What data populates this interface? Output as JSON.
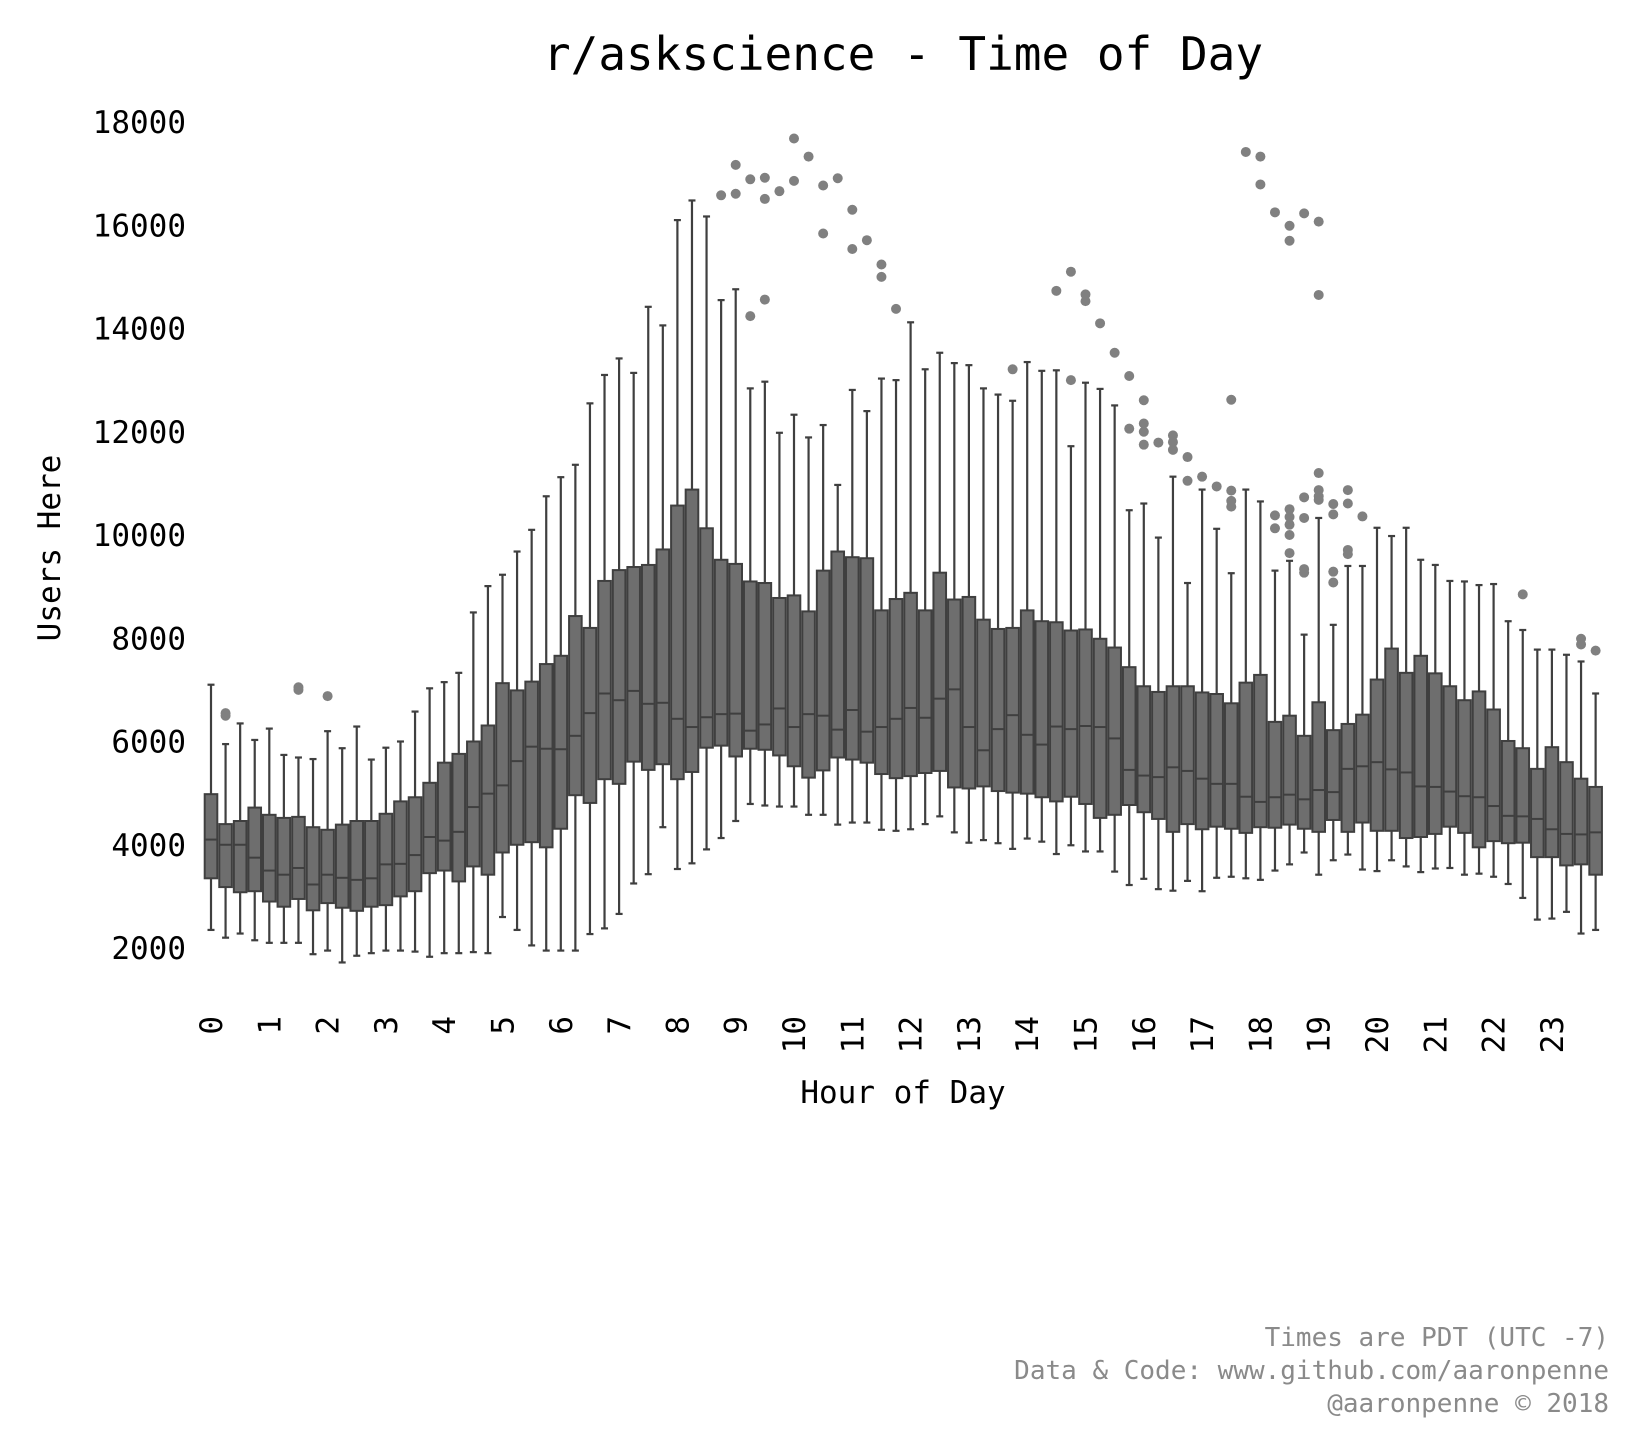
{
  "chart_data": {
    "type": "box",
    "title": "r/askscience - Time of Day",
    "xlabel": "Hour of Day",
    "ylabel": "Users Here",
    "ylim": [
      1500,
      18200
    ],
    "yticks": [
      2000,
      4000,
      6000,
      8000,
      10000,
      12000,
      14000,
      16000,
      18000
    ],
    "xticks": [
      "0",
      "1",
      "2",
      "3",
      "4",
      "5",
      "6",
      "7",
      "8",
      "9",
      "10",
      "11",
      "12",
      "13",
      "14",
      "15",
      "16",
      "17",
      "18",
      "19",
      "20",
      "21",
      "22",
      "23"
    ],
    "grid": false,
    "box_color": "#6e6e6e",
    "line_color": "#3f3f3f",
    "flier_color": "#808080",
    "boxes": [
      {
        "x": 0.0,
        "q1": 3350,
        "med": 4100,
        "q3": 4980,
        "lo": 2350,
        "hi": 7100,
        "fliers": []
      },
      {
        "x": 0.25,
        "q1": 3180,
        "med": 4000,
        "q3": 4400,
        "lo": 2200,
        "hi": 5950,
        "fliers": [
          6550,
          6500
        ]
      },
      {
        "x": 0.5,
        "q1": 3080,
        "med": 4000,
        "q3": 4460,
        "lo": 2280,
        "hi": 6350,
        "fliers": []
      },
      {
        "x": 0.75,
        "q1": 3100,
        "med": 3750,
        "q3": 4720,
        "lo": 2150,
        "hi": 6030,
        "fliers": []
      },
      {
        "x": 1.0,
        "q1": 2900,
        "med": 3500,
        "q3": 4580,
        "lo": 2100,
        "hi": 6250,
        "fliers": []
      },
      {
        "x": 1.25,
        "q1": 2800,
        "med": 3420,
        "q3": 4520,
        "lo": 2100,
        "hi": 5740,
        "fliers": []
      },
      {
        "x": 1.5,
        "q1": 2950,
        "med": 3550,
        "q3": 4540,
        "lo": 2100,
        "hi": 5690,
        "fliers": [
          7050,
          7000
        ]
      },
      {
        "x": 1.75,
        "q1": 2730,
        "med": 3230,
        "q3": 4340,
        "lo": 1880,
        "hi": 5660,
        "fliers": []
      },
      {
        "x": 2.0,
        "q1": 2870,
        "med": 3420,
        "q3": 4290,
        "lo": 1950,
        "hi": 6200,
        "fliers": [
          6880
        ]
      },
      {
        "x": 2.25,
        "q1": 2780,
        "med": 3360,
        "q3": 4390,
        "lo": 1720,
        "hi": 5870,
        "fliers": []
      },
      {
        "x": 2.5,
        "q1": 2720,
        "med": 3320,
        "q3": 4460,
        "lo": 1850,
        "hi": 6290,
        "fliers": []
      },
      {
        "x": 2.75,
        "q1": 2800,
        "med": 3350,
        "q3": 4460,
        "lo": 1900,
        "hi": 5650,
        "fliers": []
      },
      {
        "x": 3.0,
        "q1": 2830,
        "med": 3620,
        "q3": 4600,
        "lo": 1950,
        "hi": 5880,
        "fliers": []
      },
      {
        "x": 3.25,
        "q1": 3000,
        "med": 3630,
        "q3": 4840,
        "lo": 1950,
        "hi": 6000,
        "fliers": []
      },
      {
        "x": 3.5,
        "q1": 3100,
        "med": 3800,
        "q3": 4920,
        "lo": 1930,
        "hi": 6580,
        "fliers": []
      },
      {
        "x": 3.75,
        "q1": 3450,
        "med": 4150,
        "q3": 5200,
        "lo": 1830,
        "hi": 7030,
        "fliers": []
      },
      {
        "x": 4.0,
        "q1": 3500,
        "med": 4080,
        "q3": 5590,
        "lo": 1900,
        "hi": 7150,
        "fliers": []
      },
      {
        "x": 4.25,
        "q1": 3290,
        "med": 4250,
        "q3": 5760,
        "lo": 1900,
        "hi": 7330,
        "fliers": []
      },
      {
        "x": 4.5,
        "q1": 3580,
        "med": 4730,
        "q3": 6000,
        "lo": 1920,
        "hi": 8500,
        "fliers": []
      },
      {
        "x": 4.75,
        "q1": 3420,
        "med": 4990,
        "q3": 6310,
        "lo": 1900,
        "hi": 9010,
        "fliers": []
      },
      {
        "x": 5.0,
        "q1": 3850,
        "med": 5150,
        "q3": 7130,
        "lo": 2600,
        "hi": 9230,
        "fliers": []
      },
      {
        "x": 5.25,
        "q1": 4000,
        "med": 5620,
        "q3": 6990,
        "lo": 2350,
        "hi": 9680,
        "fliers": []
      },
      {
        "x": 5.5,
        "q1": 4050,
        "med": 5900,
        "q3": 7160,
        "lo": 2050,
        "hi": 10100,
        "fliers": []
      },
      {
        "x": 5.75,
        "q1": 3950,
        "med": 5860,
        "q3": 7500,
        "lo": 1950,
        "hi": 10750,
        "fliers": []
      },
      {
        "x": 6.0,
        "q1": 4310,
        "med": 5850,
        "q3": 7660,
        "lo": 1950,
        "hi": 11120,
        "fliers": []
      },
      {
        "x": 6.25,
        "q1": 4960,
        "med": 6110,
        "q3": 8430,
        "lo": 1950,
        "hi": 11360,
        "fliers": []
      },
      {
        "x": 6.5,
        "q1": 4810,
        "med": 6550,
        "q3": 8200,
        "lo": 2270,
        "hi": 12550,
        "fliers": []
      },
      {
        "x": 6.75,
        "q1": 5270,
        "med": 6930,
        "q3": 9110,
        "lo": 2380,
        "hi": 13100,
        "fliers": []
      },
      {
        "x": 7.0,
        "q1": 5180,
        "med": 6800,
        "q3": 9320,
        "lo": 2660,
        "hi": 13420,
        "fliers": []
      },
      {
        "x": 7.25,
        "q1": 5610,
        "med": 6980,
        "q3": 9380,
        "lo": 3250,
        "hi": 13140,
        "fliers": []
      },
      {
        "x": 7.5,
        "q1": 5450,
        "med": 6730,
        "q3": 9420,
        "lo": 3430,
        "hi": 14420,
        "fliers": []
      },
      {
        "x": 7.75,
        "q1": 5560,
        "med": 6750,
        "q3": 9720,
        "lo": 4340,
        "hi": 14060,
        "fliers": []
      },
      {
        "x": 8.0,
        "q1": 5270,
        "med": 6440,
        "q3": 10570,
        "lo": 3530,
        "hi": 16100,
        "fliers": []
      },
      {
        "x": 8.25,
        "q1": 5410,
        "med": 6280,
        "q3": 10880,
        "lo": 3640,
        "hi": 16480,
        "fliers": []
      },
      {
        "x": 8.5,
        "q1": 5880,
        "med": 6470,
        "q3": 10130,
        "lo": 3910,
        "hi": 16170,
        "fliers": []
      },
      {
        "x": 8.75,
        "q1": 5920,
        "med": 6530,
        "q3": 9520,
        "lo": 4130,
        "hi": 14550,
        "fliers": [
          16580
        ]
      },
      {
        "x": 9.0,
        "q1": 5710,
        "med": 6540,
        "q3": 9440,
        "lo": 4460,
        "hi": 14760,
        "fliers": [
          17170,
          16610
        ]
      },
      {
        "x": 9.25,
        "q1": 5860,
        "med": 6210,
        "q3": 9100,
        "lo": 4790,
        "hi": 12840,
        "fliers": [
          16890,
          14240
        ]
      },
      {
        "x": 9.5,
        "q1": 5840,
        "med": 6330,
        "q3": 9070,
        "lo": 4760,
        "hi": 12970,
        "fliers": [
          16920,
          16510,
          14560
        ]
      },
      {
        "x": 9.75,
        "q1": 5730,
        "med": 6640,
        "q3": 8780,
        "lo": 4740,
        "hi": 11980,
        "fliers": [
          16660
        ]
      },
      {
        "x": 10.0,
        "q1": 5520,
        "med": 6280,
        "q3": 8830,
        "lo": 4740,
        "hi": 12330,
        "fliers": [
          17680,
          16860
        ]
      },
      {
        "x": 10.25,
        "q1": 5300,
        "med": 6530,
        "q3": 8520,
        "lo": 4580,
        "hi": 11890,
        "fliers": [
          17330
        ]
      },
      {
        "x": 10.5,
        "q1": 5440,
        "med": 6500,
        "q3": 9310,
        "lo": 4580,
        "hi": 12130,
        "fliers": [
          16770,
          15840
        ]
      },
      {
        "x": 10.75,
        "q1": 5690,
        "med": 6230,
        "q3": 9680,
        "lo": 4390,
        "hi": 10970,
        "fliers": [
          16910
        ]
      },
      {
        "x": 11.0,
        "q1": 5650,
        "med": 6610,
        "q3": 9570,
        "lo": 4430,
        "hi": 12810,
        "fliers": [
          16300,
          15540
        ]
      },
      {
        "x": 11.25,
        "q1": 5590,
        "med": 6190,
        "q3": 9550,
        "lo": 4430,
        "hi": 12400,
        "fliers": [
          15710
        ]
      },
      {
        "x": 11.5,
        "q1": 5370,
        "med": 6280,
        "q3": 8540,
        "lo": 4290,
        "hi": 13030,
        "fliers": [
          15240,
          15000
        ]
      },
      {
        "x": 11.75,
        "q1": 5290,
        "med": 6440,
        "q3": 8760,
        "lo": 4270,
        "hi": 13000,
        "fliers": [
          14380
        ]
      },
      {
        "x": 12.0,
        "q1": 5330,
        "med": 6650,
        "q3": 8880,
        "lo": 4300,
        "hi": 14120,
        "fliers": []
      },
      {
        "x": 12.25,
        "q1": 5390,
        "med": 6460,
        "q3": 8540,
        "lo": 4400,
        "hi": 13210,
        "fliers": []
      },
      {
        "x": 12.5,
        "q1": 5430,
        "med": 6830,
        "q3": 9270,
        "lo": 4550,
        "hi": 13530,
        "fliers": []
      },
      {
        "x": 12.75,
        "q1": 5110,
        "med": 7010,
        "q3": 8750,
        "lo": 4240,
        "hi": 13330,
        "fliers": []
      },
      {
        "x": 13.0,
        "q1": 5090,
        "med": 6280,
        "q3": 8800,
        "lo": 4040,
        "hi": 13290,
        "fliers": []
      },
      {
        "x": 13.25,
        "q1": 5130,
        "med": 5830,
        "q3": 8360,
        "lo": 4090,
        "hi": 12840,
        "fliers": []
      },
      {
        "x": 13.5,
        "q1": 5040,
        "med": 6240,
        "q3": 8180,
        "lo": 4030,
        "hi": 12720,
        "fliers": []
      },
      {
        "x": 13.75,
        "q1": 5010,
        "med": 6510,
        "q3": 8200,
        "lo": 3920,
        "hi": 12600,
        "fliers": [
          13210
        ]
      },
      {
        "x": 14.0,
        "q1": 4990,
        "med": 6130,
        "q3": 8540,
        "lo": 4120,
        "hi": 13350,
        "fliers": []
      },
      {
        "x": 14.25,
        "q1": 4920,
        "med": 5940,
        "q3": 8330,
        "lo": 4060,
        "hi": 13180,
        "fliers": []
      },
      {
        "x": 14.5,
        "q1": 4840,
        "med": 6290,
        "q3": 8310,
        "lo": 3820,
        "hi": 13190,
        "fliers": [
          14730
        ]
      },
      {
        "x": 14.75,
        "q1": 4930,
        "med": 6240,
        "q3": 8150,
        "lo": 3990,
        "hi": 11720,
        "fliers": [
          15100,
          13000
        ]
      },
      {
        "x": 15.0,
        "q1": 4790,
        "med": 6300,
        "q3": 8170,
        "lo": 3870,
        "hi": 12950,
        "fliers": [
          14660,
          14530
        ]
      },
      {
        "x": 15.25,
        "q1": 4520,
        "med": 6280,
        "q3": 7990,
        "lo": 3870,
        "hi": 12830,
        "fliers": [
          14100
        ]
      },
      {
        "x": 15.5,
        "q1": 4580,
        "med": 6060,
        "q3": 7820,
        "lo": 3480,
        "hi": 12510,
        "fliers": [
          13530
        ]
      },
      {
        "x": 15.75,
        "q1": 4770,
        "med": 5450,
        "q3": 7440,
        "lo": 3220,
        "hi": 10480,
        "fliers": [
          13080,
          12060
        ]
      },
      {
        "x": 16.0,
        "q1": 4630,
        "med": 5340,
        "q3": 7070,
        "lo": 3340,
        "hi": 10610,
        "fliers": [
          12610,
          12160,
          12000,
          11750
        ]
      },
      {
        "x": 16.25,
        "q1": 4500,
        "med": 5310,
        "q3": 6960,
        "lo": 3140,
        "hi": 9950,
        "fliers": [
          11790
        ]
      },
      {
        "x": 16.5,
        "q1": 4250,
        "med": 5500,
        "q3": 7070,
        "lo": 3110,
        "hi": 11130,
        "fliers": [
          11930,
          11800,
          11650
        ]
      },
      {
        "x": 16.75,
        "q1": 4400,
        "med": 5430,
        "q3": 7070,
        "lo": 3300,
        "hi": 9070,
        "fliers": [
          11510,
          11050
        ]
      },
      {
        "x": 17.0,
        "q1": 4300,
        "med": 5280,
        "q3": 6950,
        "lo": 3100,
        "hi": 10880,
        "fliers": [
          11130
        ]
      },
      {
        "x": 17.25,
        "q1": 4350,
        "med": 5180,
        "q3": 6920,
        "lo": 3360,
        "hi": 10120,
        "fliers": [
          10940
        ]
      },
      {
        "x": 17.5,
        "q1": 4310,
        "med": 5180,
        "q3": 6740,
        "lo": 3380,
        "hi": 9260,
        "fliers": [
          12620,
          10860,
          10660,
          10550
        ]
      },
      {
        "x": 17.75,
        "q1": 4230,
        "med": 4930,
        "q3": 7140,
        "lo": 3350,
        "hi": 10880,
        "fliers": [
          17420
        ]
      },
      {
        "x": 18.0,
        "q1": 4340,
        "med": 4830,
        "q3": 7290,
        "lo": 3320,
        "hi": 10650,
        "fliers": [
          17330,
          16790
        ]
      },
      {
        "x": 18.25,
        "q1": 4330,
        "med": 4920,
        "q3": 6380,
        "lo": 3500,
        "hi": 9310,
        "fliers": [
          16250,
          10380,
          10130
        ]
      },
      {
        "x": 18.5,
        "q1": 4390,
        "med": 4970,
        "q3": 6500,
        "lo": 3620,
        "hi": 9500,
        "fliers": [
          15990,
          15700,
          10500,
          10350,
          10200,
          10000,
          9650
        ]
      },
      {
        "x": 18.75,
        "q1": 4310,
        "med": 4880,
        "q3": 6110,
        "lo": 3850,
        "hi": 8070,
        "fliers": [
          16230,
          10730,
          10330,
          9340,
          9270
        ]
      },
      {
        "x": 19.0,
        "q1": 4250,
        "med": 5060,
        "q3": 6760,
        "lo": 3420,
        "hi": 10330,
        "fliers": [
          16070,
          14650,
          11200,
          10870,
          10750,
          10680
        ]
      },
      {
        "x": 19.25,
        "q1": 4480,
        "med": 5020,
        "q3": 6220,
        "lo": 3700,
        "hi": 8260,
        "fliers": [
          10600,
          10400,
          9290,
          9080
        ]
      },
      {
        "x": 19.5,
        "q1": 4250,
        "med": 5470,
        "q3": 6340,
        "lo": 3810,
        "hi": 9400,
        "fliers": [
          10870,
          10610,
          9710,
          9630
        ]
      },
      {
        "x": 19.75,
        "q1": 4430,
        "med": 5520,
        "q3": 6520,
        "lo": 3520,
        "hi": 9400,
        "fliers": [
          10360
        ]
      },
      {
        "x": 20.0,
        "q1": 4270,
        "med": 5600,
        "q3": 7200,
        "lo": 3490,
        "hi": 10140,
        "fliers": []
      },
      {
        "x": 20.25,
        "q1": 4270,
        "med": 5460,
        "q3": 7800,
        "lo": 3700,
        "hi": 9980,
        "fliers": []
      },
      {
        "x": 20.5,
        "q1": 4130,
        "med": 5400,
        "q3": 7330,
        "lo": 3580,
        "hi": 10140,
        "fliers": []
      },
      {
        "x": 20.75,
        "q1": 4150,
        "med": 5130,
        "q3": 7660,
        "lo": 3470,
        "hi": 9520,
        "fliers": []
      },
      {
        "x": 21.0,
        "q1": 4210,
        "med": 5120,
        "q3": 7320,
        "lo": 3540,
        "hi": 9420,
        "fliers": []
      },
      {
        "x": 21.25,
        "q1": 4350,
        "med": 5030,
        "q3": 7070,
        "lo": 3550,
        "hi": 9110,
        "fliers": []
      },
      {
        "x": 21.5,
        "q1": 4230,
        "med": 4940,
        "q3": 6800,
        "lo": 3420,
        "hi": 9100,
        "fliers": []
      },
      {
        "x": 21.75,
        "q1": 3950,
        "med": 4920,
        "q3": 6970,
        "lo": 3440,
        "hi": 9030,
        "fliers": []
      },
      {
        "x": 22.0,
        "q1": 4070,
        "med": 4750,
        "q3": 6620,
        "lo": 3380,
        "hi": 9050,
        "fliers": []
      },
      {
        "x": 22.25,
        "q1": 4030,
        "med": 4560,
        "q3": 6010,
        "lo": 3240,
        "hi": 8330,
        "fliers": []
      },
      {
        "x": 22.5,
        "q1": 4040,
        "med": 4550,
        "q3": 5870,
        "lo": 2970,
        "hi": 8160,
        "fliers": [
          8850
        ]
      },
      {
        "x": 22.75,
        "q1": 3760,
        "med": 4500,
        "q3": 5470,
        "lo": 2550,
        "hi": 7780,
        "fliers": []
      },
      {
        "x": 23.0,
        "q1": 3760,
        "med": 4300,
        "q3": 5890,
        "lo": 2570,
        "hi": 7780,
        "fliers": []
      },
      {
        "x": 23.25,
        "q1": 3600,
        "med": 4210,
        "q3": 5600,
        "lo": 2700,
        "hi": 7680,
        "fliers": []
      },
      {
        "x": 23.5,
        "q1": 3620,
        "med": 4200,
        "q3": 5280,
        "lo": 2280,
        "hi": 7550,
        "fliers": [
          7990,
          7880
        ]
      },
      {
        "x": 23.75,
        "q1": 3420,
        "med": 4240,
        "q3": 5120,
        "lo": 2350,
        "hi": 6930,
        "fliers": [
          7760
        ]
      }
    ]
  },
  "footer": {
    "line1": "Times are PDT (UTC -7)",
    "line2": "Data & Code: www.github.com/aaronpenne",
    "line3": "@aaronpenne © 2018"
  }
}
